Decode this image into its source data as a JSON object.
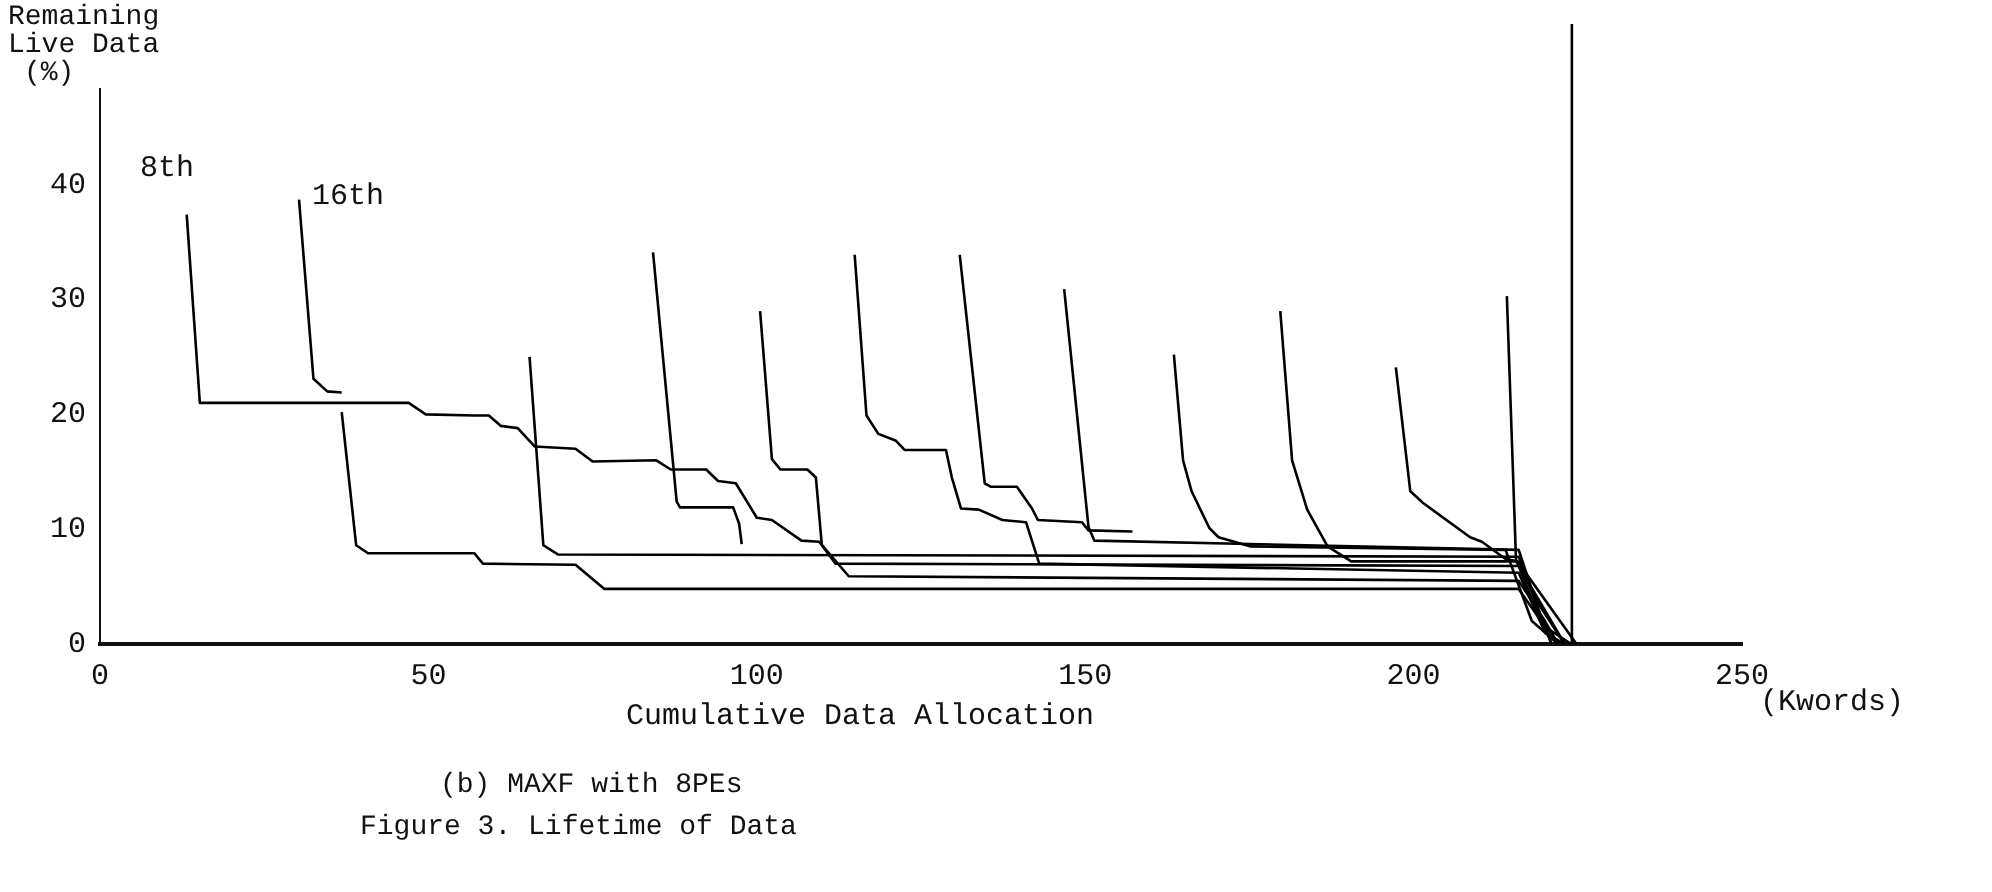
{
  "chart_data": {
    "type": "line",
    "title": "Figure 3.  Lifetime of Data",
    "subtitle": "(b) MAXF with 8PEs",
    "xlabel": "Cumulative Data Allocation",
    "ylabel": "Remaining Live Data (%)",
    "annotations": [
      "8th",
      "16th",
      "(Kwords)"
    ],
    "xlim": [
      0,
      250
    ],
    "xticks": [
      0,
      50,
      100,
      150,
      200,
      250
    ],
    "ylim": [
      0,
      54
    ],
    "yticks": [
      0,
      10,
      20,
      30,
      40
    ],
    "marker": "none",
    "line_style": "solid",
    "series": [
      {
        "color": "#000000",
        "x": [
          13.2,
          15.2,
          47,
          49.6,
          57,
          59.2,
          61,
          63.6,
          66.2,
          72.4,
          75,
          84.7,
          86.9,
          92.3,
          94.1,
          96.8,
          100,
          102.3,
          106.8,
          109.5,
          114,
          216,
          220,
          222
        ],
        "values": [
          37.4,
          21,
          21,
          20,
          19.9,
          19.9,
          19,
          18.8,
          17.2,
          17,
          15.9,
          16,
          15.2,
          15.2,
          14.2,
          14,
          11,
          10.8,
          9,
          8.9,
          5.9,
          5.5,
          2,
          0
        ]
      },
      {
        "color": "#000000",
        "x": [
          30.3,
          32.5,
          34.6,
          36.8
        ],
        "values": [
          38.7,
          23.1,
          22,
          21.9
        ]
      },
      {
        "color": "#000000",
        "x": [
          36.8,
          39,
          40.8,
          57,
          58.3,
          72.4,
          76.8,
          216,
          220,
          224
        ],
        "values": [
          20.2,
          8.6,
          7.9,
          7.9,
          7,
          6.9,
          4.8,
          4.8,
          1.5,
          0
        ]
      },
      {
        "color": "#000000",
        "x": [
          65.4,
          67.5,
          69.7,
          216,
          219,
          221
        ],
        "values": [
          25,
          8.6,
          7.8,
          7.6,
          3,
          0
        ]
      },
      {
        "color": "#000000",
        "x": [
          84.2,
          87.8,
          88.3,
          96.4,
          97.3,
          97.7
        ],
        "values": [
          34.1,
          12.4,
          11.9,
          11.9,
          10.5,
          8.7
        ]
      },
      {
        "color": "#000000",
        "x": [
          100.5,
          102.3,
          103.6,
          107.7,
          109,
          109.9,
          112,
          216,
          219,
          222
        ],
        "values": [
          29,
          16.1,
          15.2,
          15.2,
          14.5,
          8.6,
          7,
          6.8,
          2.5,
          0
        ]
      },
      {
        "color": "#000000",
        "x": [
          114.9,
          116.7,
          118.5,
          121.2,
          122.5,
          128.8,
          129.7,
          131.1,
          133.8,
          137.4,
          141,
          143,
          216,
          220,
          223
        ],
        "values": [
          33.9,
          19.9,
          18.3,
          17.7,
          16.9,
          16.9,
          14.5,
          11.8,
          11.7,
          10.8,
          10.6,
          7,
          6.2,
          1,
          0
        ]
      },
      {
        "color": "#000000",
        "x": [
          130.9,
          134.7,
          135.6,
          139.6,
          141.9,
          142.8,
          149.5,
          150.5,
          157.2
        ],
        "values": [
          33.9,
          14,
          13.7,
          13.7,
          11.8,
          10.8,
          10.6,
          9.9,
          9.8
        ]
      },
      {
        "color": "#000000",
        "x": [
          146.8,
          150.5,
          151.4,
          216,
          219,
          221
        ],
        "values": [
          30.9,
          10.2,
          9,
          8.2,
          3,
          0
        ]
      },
      {
        "color": "#000000",
        "x": [
          163.5,
          164.9,
          166.2,
          168.9,
          170.3,
          175.2,
          214,
          218,
          222
        ],
        "values": [
          25.2,
          16,
          13.3,
          10.1,
          9.3,
          8.5,
          8.2,
          2,
          0
        ]
      },
      {
        "color": "#000000",
        "x": [
          179.7,
          181.5,
          183.8,
          186.9,
          190.5,
          215.8,
          219,
          223
        ],
        "values": [
          29,
          16,
          11.7,
          8.5,
          7.2,
          7.2,
          3.5,
          0
        ]
      },
      {
        "color": "#000000",
        "x": [
          197.3,
          199.5,
          201.4,
          208.6,
          210.4,
          214,
          215.8,
          224.8
        ],
        "values": [
          24.1,
          13.3,
          12.3,
          9.3,
          8.9,
          7.4,
          7.2,
          0
        ]
      },
      {
        "color": "#000000",
        "x": [
          214.2,
          215.6,
          223
        ],
        "values": [
          30.3,
          7.2,
          0
        ]
      },
      {
        "color": "#000000",
        "x": [
          224.1,
          224.1
        ],
        "values": [
          54,
          0
        ]
      }
    ]
  }
}
